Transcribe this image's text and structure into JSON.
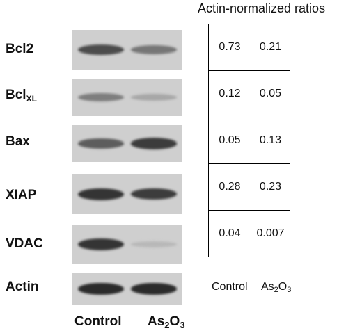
{
  "title": "Actin-normalized ratios",
  "rows": [
    {
      "label": "Bcl2",
      "label_sub": "",
      "control": "0.73",
      "as2o3": "0.21",
      "band_control": 0.75,
      "band_as2o3": 0.5
    },
    {
      "label": "Bcl",
      "label_sub": "XL",
      "control": "0.12",
      "as2o3": "0.05",
      "band_control": 0.45,
      "band_as2o3": 0.2
    },
    {
      "label": "Bax",
      "label_sub": "",
      "control": "0.05",
      "as2o3": "0.13",
      "band_control": 0.65,
      "band_as2o3": 0.85
    },
    {
      "label": "XIAP",
      "label_sub": "",
      "control": "0.28",
      "as2o3": "0.23",
      "band_control": 0.9,
      "band_as2o3": 0.85
    },
    {
      "label": "VDAC",
      "label_sub": "",
      "control": "0.04",
      "as2o3": "0.007",
      "band_control": 0.9,
      "band_as2o3": 0.1
    },
    {
      "label": "Actin",
      "label_sub": "",
      "control": "",
      "as2o3": "",
      "band_control": 0.95,
      "band_as2o3": 0.95
    }
  ],
  "lanes": {
    "control": "Control",
    "as2o3_base": "As",
    "as2o3_sub1": "2",
    "as2o3_mid": "O",
    "as2o3_sub2": "3"
  }
}
